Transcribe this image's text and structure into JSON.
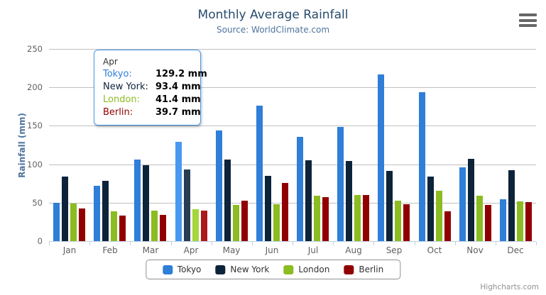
{
  "header": {
    "title": "Monthly Average Rainfall",
    "subtitle": "Source: WorldClimate.com"
  },
  "export_menu": {
    "icon": "hamburger-menu-icon"
  },
  "chart_data": {
    "type": "bar",
    "title": "Monthly Average Rainfall",
    "subtitle": "Source: WorldClimate.com",
    "categories": [
      "Jan",
      "Feb",
      "Mar",
      "Apr",
      "May",
      "Jun",
      "Jul",
      "Aug",
      "Sep",
      "Oct",
      "Nov",
      "Dec"
    ],
    "series": [
      {
        "name": "Tokyo",
        "color": "#2f7ed8",
        "hover_color": "#4998f2",
        "values": [
          49.9,
          71.5,
          106.4,
          129.2,
          144.0,
          176.0,
          135.6,
          148.5,
          216.4,
          194.1,
          95.6,
          54.4
        ]
      },
      {
        "name": "New York",
        "color": "#0d233a",
        "hover_color": "#273d54",
        "values": [
          83.6,
          78.8,
          98.5,
          93.4,
          106.0,
          84.5,
          105.0,
          104.3,
          91.2,
          83.5,
          106.6,
          92.3
        ]
      },
      {
        "name": "London",
        "color": "#8bbc21",
        "hover_color": "#a5d63b",
        "values": [
          48.9,
          38.8,
          39.3,
          41.4,
          47.0,
          48.3,
          59.0,
          59.6,
          52.4,
          65.2,
          59.3,
          51.2
        ]
      },
      {
        "name": "Berlin",
        "color": "#910000",
        "hover_color": "#ab1a1a",
        "values": [
          42.4,
          33.2,
          34.5,
          39.7,
          52.6,
          75.5,
          57.4,
          60.4,
          47.6,
          39.1,
          46.8,
          51.1
        ]
      }
    ],
    "xlabel": "",
    "ylabel": "Rainfall (mm)",
    "ylim": [
      0,
      250
    ],
    "y_ticks": [
      0,
      50,
      100,
      150,
      200,
      250
    ],
    "grid": true,
    "legend_position": "bottom",
    "hovered_category": "Apr",
    "hovered_category_index": 3
  },
  "y_axis": {
    "title": "Rainfall (mm)"
  },
  "tooltip": {
    "header": "Apr",
    "rows": [
      {
        "label": "Tokyo:",
        "value": "129.2 mm",
        "color": "#2f7ed8"
      },
      {
        "label": "New York:",
        "value": "93.4 mm",
        "color": "#0d233a"
      },
      {
        "label": "London:",
        "value": "41.4 mm",
        "color": "#8bbc21"
      },
      {
        "label": "Berlin:",
        "value": "39.7 mm",
        "color": "#910000"
      }
    ],
    "border_color": "#4a9af0"
  },
  "legend": {
    "items": [
      "Tokyo",
      "New York",
      "London",
      "Berlin"
    ]
  },
  "credits": {
    "label": "Highcharts.com"
  },
  "colors": {
    "title": "#274b6d",
    "subtitle": "#4d759e",
    "axis_labels": "#606060",
    "gridline": "#c0c0c0",
    "axis_line": "#c0d0e0"
  }
}
